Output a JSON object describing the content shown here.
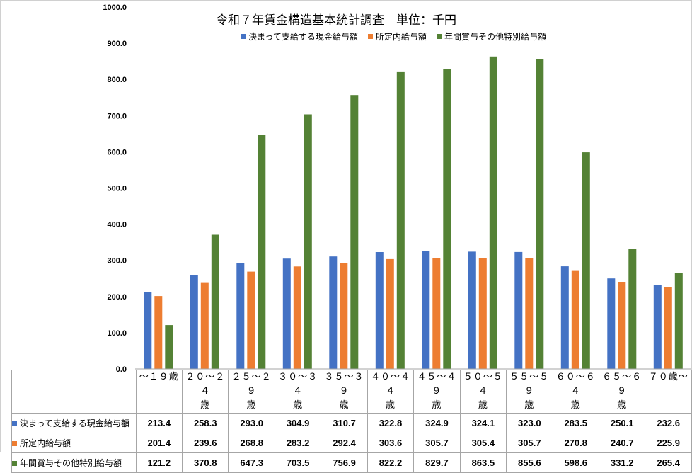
{
  "chart_data": {
    "type": "bar",
    "title": "令和７年賃金構造基本統計調査　単位：千円",
    "ylim": [
      0,
      1000
    ],
    "yticks": [
      "0.0",
      "100.0",
      "200.0",
      "300.0",
      "400.0",
      "500.0",
      "600.0",
      "700.0",
      "800.0",
      "900.0",
      "1000.0"
    ],
    "grid": false,
    "legend_position": "top",
    "categories": [
      [
        "～１９歳"
      ],
      [
        "２０～２４",
        "歳"
      ],
      [
        "２５～２９",
        "歳"
      ],
      [
        "３０～３４",
        "歳"
      ],
      [
        "３５～３９",
        "歳"
      ],
      [
        "４０～４４",
        "歳"
      ],
      [
        "４５～４９",
        "歳"
      ],
      [
        "５０～５４",
        "歳"
      ],
      [
        "５５～５９",
        "歳"
      ],
      [
        "６０～６４",
        "歳"
      ],
      [
        "６５～６９",
        "歳"
      ],
      [
        "７０歳～"
      ]
    ],
    "series": [
      {
        "name": "決まって支給する現金給与額",
        "color": "#4472C4",
        "values": [
          213.4,
          258.3,
          293.0,
          304.9,
          310.7,
          322.8,
          324.9,
          324.1,
          323.0,
          283.5,
          250.1,
          232.6
        ],
        "labels": [
          "213.4",
          "258.3",
          "293.0",
          "304.9",
          "310.7",
          "322.8",
          "324.9",
          "324.1",
          "323.0",
          "283.5",
          "250.1",
          "232.6"
        ]
      },
      {
        "name": "所定内給与額",
        "color": "#ED7D31",
        "values": [
          201.4,
          239.6,
          268.8,
          283.2,
          292.4,
          303.6,
          305.7,
          305.4,
          305.7,
          270.8,
          240.7,
          225.9
        ],
        "labels": [
          "201.4",
          "239.6",
          "268.8",
          "283.2",
          "292.4",
          "303.6",
          "305.7",
          "305.4",
          "305.7",
          "270.8",
          "240.7",
          "225.9"
        ]
      },
      {
        "name": "年間賞与その他特別給与額",
        "color": "#548235",
        "values": [
          121.2,
          370.8,
          647.3,
          703.5,
          756.9,
          822.2,
          829.7,
          863.5,
          855.6,
          598.6,
          331.2,
          265.4
        ],
        "labels": [
          "121.2",
          "370.8",
          "647.3",
          "703.5",
          "756.9",
          "822.2",
          "829.7",
          "863.5",
          "855.6",
          "598.6",
          "331.2",
          "265.4"
        ]
      }
    ]
  }
}
